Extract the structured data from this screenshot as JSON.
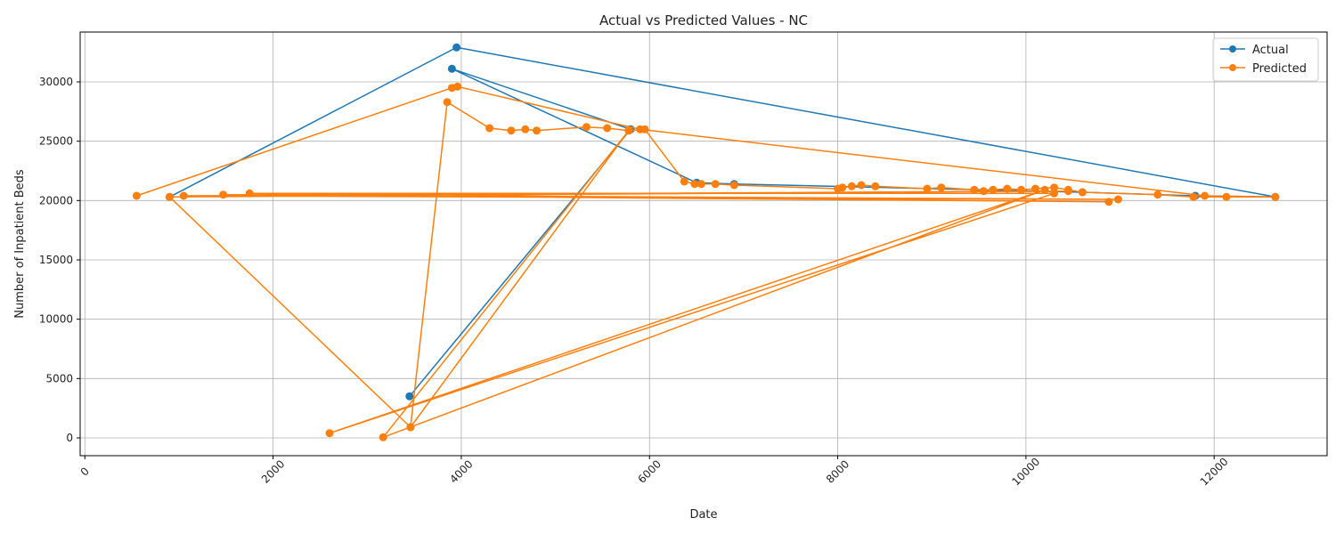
{
  "chart_data": {
    "type": "line",
    "title": "Actual vs Predicted Values - NC",
    "xlabel": "Date",
    "ylabel": "Number of Inpatient Beds",
    "xlim": [
      -50,
      13200
    ],
    "ylim": [
      -1500,
      34200
    ],
    "x_ticks": [
      0,
      2000,
      4000,
      6000,
      8000,
      10000,
      12000
    ],
    "y_ticks": [
      0,
      5000,
      10000,
      15000,
      20000,
      25000,
      30000
    ],
    "grid": true,
    "legend_position": "top-right",
    "series": [
      {
        "name": "Actual",
        "color": "#1f77b4",
        "x": [
          3450,
          5800,
          3900,
          6500,
          6900,
          10600,
          11800,
          12650,
          3950,
          900
        ],
        "y": [
          3500,
          26000,
          31100,
          21500,
          21400,
          20700,
          20400,
          20300,
          32900,
          20300
        ]
      },
      {
        "name": "Predicted",
        "color": "#ff7f0e",
        "x": [
          550,
          3900,
          3960,
          5900,
          11900,
          12650,
          12130,
          11780,
          11400,
          10600,
          10450,
          10300,
          10100,
          9950,
          9800,
          9650,
          9550,
          9450,
          9100,
          8950,
          8400,
          8250,
          8150,
          8050,
          8000,
          6900,
          6700,
          6550,
          6480,
          6370,
          5950,
          5780,
          5550,
          5330,
          4800,
          4680,
          4530,
          4300,
          3850,
          3460,
          5780,
          3170,
          10200,
          2600,
          10300,
          1750,
          10880,
          1470,
          10980,
          1050,
          10450,
          900,
          3460
        ],
        "y": [
          20400,
          29500,
          29600,
          26000,
          20400,
          20300,
          20300,
          20300,
          20500,
          20700,
          20900,
          21100,
          21000,
          20900,
          21000,
          20900,
          20800,
          20900,
          21100,
          21000,
          21200,
          21300,
          21200,
          21100,
          21000,
          21300,
          21400,
          21400,
          21400,
          21600,
          26000,
          25900,
          26100,
          26200,
          25900,
          26000,
          25900,
          26100,
          28300,
          900,
          25900,
          50,
          20900,
          400,
          20600,
          20600,
          19900,
          20500,
          20100,
          20400,
          20800,
          20300,
          900
        ]
      }
    ]
  }
}
